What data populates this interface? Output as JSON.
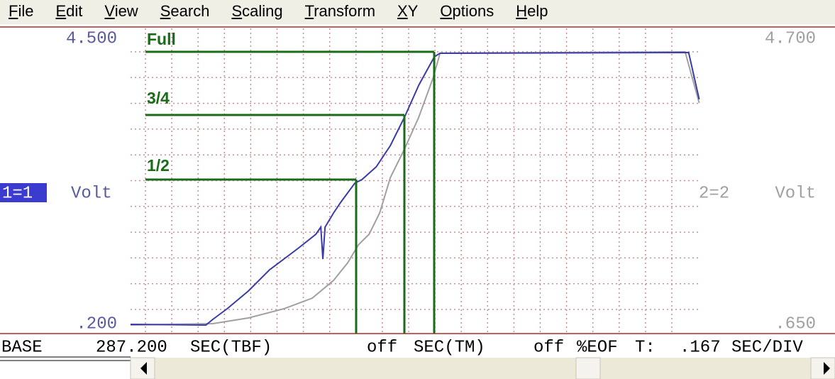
{
  "menu": [
    "File",
    "Edit",
    "View",
    "Search",
    "Scaling",
    "Transform",
    "XY",
    "Options",
    "Help"
  ],
  "chart_data": {
    "type": "line",
    "xlim": [
      0,
      3.35
    ],
    "ylim": [
      0.2,
      4.5
    ],
    "yticks": [
      {
        "value": 4.5,
        "label": "4.500"
      },
      {
        "value": 0.2,
        "label": ".200"
      }
    ],
    "y2lim": [
      0.65,
      4.7
    ],
    "y2ticks": [
      {
        "value": 4.7,
        "label": "4.700"
      },
      {
        "value": 0.65,
        "label": ".650"
      }
    ],
    "ylabel": {
      "channel": "1=1",
      "unit": "Volt"
    },
    "y2label": {
      "channel": "2=2",
      "unit": "Volt"
    },
    "annotations": [
      "Full",
      "3/4",
      "1/2"
    ],
    "grid": true,
    "series": [
      {
        "name": "1=1",
        "color": "#3a3aa8",
        "x": [
          0,
          0.443,
          0.484,
          0.568,
          0.693,
          0.818,
          0.985,
          1.09,
          1.119,
          1.131,
          1.144,
          1.194,
          1.236,
          1.319,
          1.361,
          1.445,
          1.528,
          1.611,
          1.695,
          1.787,
          1.82,
          3.282,
          3.344
        ],
        "values": [
          0.189,
          0.179,
          0.264,
          0.425,
          0.692,
          1.013,
          1.334,
          1.548,
          1.655,
          1.173,
          1.655,
          1.869,
          2.029,
          2.318,
          2.371,
          2.564,
          2.885,
          3.313,
          3.794,
          4.222,
          4.275,
          4.286,
          3.58
        ]
      },
      {
        "name": "2=2",
        "color": "#a0a0a0",
        "axis": "y2",
        "x": [
          0,
          0.484,
          0.693,
          0.902,
          1.069,
          1.194,
          1.278,
          1.34,
          1.403,
          1.465,
          1.528,
          1.611,
          1.695,
          1.779,
          1.82,
          3.261,
          3.344
        ],
        "values": [
          0.63,
          0.65,
          0.731,
          0.862,
          1.013,
          1.265,
          1.516,
          1.768,
          1.919,
          2.222,
          2.725,
          3.128,
          3.582,
          4.136,
          4.488,
          4.509,
          3.783
        ]
      }
    ]
  },
  "status": {
    "base": "BASE",
    "tbf_value": "287.200",
    "tbf_unit": "SEC(TBF)",
    "tm_value": "off",
    "tm_unit": "SEC(TM)",
    "eof_value": "off",
    "eof_unit": "%EOF",
    "t_label": "T:",
    "div_value": ".167",
    "div_unit": "SEC/DIV"
  }
}
